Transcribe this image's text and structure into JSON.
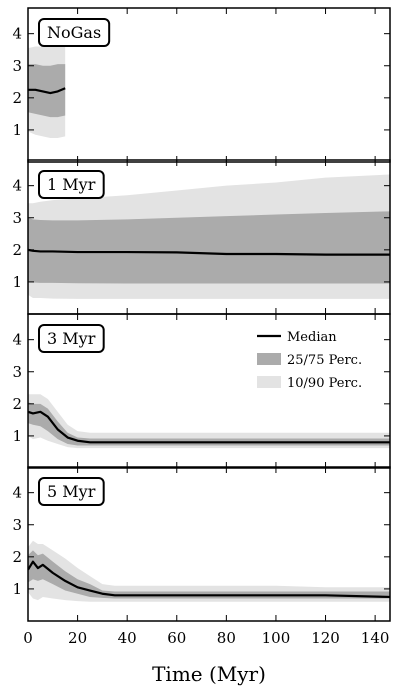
{
  "chart_data": {
    "type": "area",
    "xlabel": "Time (Myr)",
    "xlim": [
      0,
      146
    ],
    "ylim": [
      0,
      4.8
    ],
    "xticks": [
      0,
      20,
      40,
      60,
      80,
      100,
      120,
      140
    ],
    "yticks": [
      1,
      2,
      3,
      4
    ],
    "colors": {
      "p10_90": "#e3e3e3",
      "p25_75": "#ababab",
      "median": "#000000"
    },
    "legend": {
      "placement": "top-right of third panel",
      "entries": [
        "Median",
        "25/75 Perc.",
        "10/90 Perc."
      ]
    },
    "panels": [
      {
        "label": "NoGas",
        "x": [
          0,
          3,
          6,
          9,
          12,
          15
        ],
        "median": [
          2.25,
          2.25,
          2.2,
          2.15,
          2.2,
          2.3
        ],
        "p25": [
          1.55,
          1.5,
          1.45,
          1.4,
          1.4,
          1.45
        ],
        "p75": [
          3.05,
          3.05,
          3.0,
          3.0,
          3.05,
          3.05
        ],
        "p10": [
          0.95,
          0.85,
          0.8,
          0.75,
          0.75,
          0.8
        ],
        "p90": [
          3.55,
          3.6,
          3.6,
          3.6,
          3.65,
          3.65
        ]
      },
      {
        "label": "1 Myr",
        "x": [
          0,
          2,
          5,
          10,
          20,
          40,
          60,
          80,
          100,
          120,
          146
        ],
        "median": [
          2.0,
          1.97,
          1.95,
          1.95,
          1.93,
          1.93,
          1.92,
          1.87,
          1.87,
          1.85,
          1.85
        ],
        "p25": [
          1.0,
          0.98,
          0.97,
          0.97,
          0.96,
          0.95,
          0.95,
          0.95,
          0.95,
          0.95,
          0.95
        ],
        "p75": [
          3.0,
          2.95,
          2.93,
          2.92,
          2.92,
          2.95,
          3.0,
          3.05,
          3.1,
          3.15,
          3.2
        ],
        "p10": [
          0.6,
          0.5,
          0.5,
          0.48,
          0.47,
          0.47,
          0.47,
          0.47,
          0.47,
          0.47,
          0.47
        ],
        "p90": [
          3.45,
          3.45,
          3.5,
          3.55,
          3.6,
          3.7,
          3.85,
          4.0,
          4.1,
          4.25,
          4.35
        ]
      },
      {
        "label": "3 Myr",
        "x": [
          0,
          2,
          5,
          8,
          12,
          16,
          20,
          25,
          30,
          40,
          60,
          80,
          100,
          120,
          146
        ],
        "median": [
          1.75,
          1.7,
          1.75,
          1.6,
          1.2,
          0.95,
          0.85,
          0.8,
          0.8,
          0.8,
          0.8,
          0.8,
          0.8,
          0.8,
          0.8
        ],
        "p25": [
          1.4,
          1.35,
          1.3,
          1.15,
          0.9,
          0.75,
          0.7,
          0.7,
          0.7,
          0.7,
          0.7,
          0.7,
          0.7,
          0.7,
          0.7
        ],
        "p75": [
          2.05,
          2.0,
          2.0,
          1.85,
          1.45,
          1.1,
          0.95,
          0.92,
          0.92,
          0.92,
          0.92,
          0.92,
          0.92,
          0.92,
          0.92
        ],
        "p10": [
          1.0,
          0.9,
          0.95,
          0.85,
          0.75,
          0.65,
          0.62,
          0.62,
          0.62,
          0.62,
          0.62,
          0.62,
          0.62,
          0.62,
          0.62
        ],
        "p90": [
          2.3,
          2.3,
          2.3,
          2.15,
          1.75,
          1.35,
          1.15,
          1.1,
          1.1,
          1.1,
          1.1,
          1.1,
          1.1,
          1.1,
          1.1
        ]
      },
      {
        "label": "5 Myr",
        "x": [
          0,
          2,
          4,
          6,
          10,
          15,
          20,
          25,
          30,
          35,
          40,
          60,
          80,
          100,
          120,
          146
        ],
        "median": [
          1.6,
          1.85,
          1.65,
          1.75,
          1.5,
          1.25,
          1.05,
          0.95,
          0.85,
          0.8,
          0.8,
          0.8,
          0.8,
          0.8,
          0.8,
          0.75
        ],
        "p25": [
          1.2,
          1.3,
          1.25,
          1.3,
          1.15,
          0.95,
          0.85,
          0.75,
          0.72,
          0.7,
          0.7,
          0.7,
          0.7,
          0.7,
          0.7,
          0.7
        ],
        "p75": [
          2.05,
          2.2,
          2.05,
          2.1,
          1.85,
          1.55,
          1.3,
          1.15,
          0.95,
          0.92,
          0.92,
          0.92,
          0.92,
          0.92,
          0.92,
          0.92
        ],
        "p10": [
          0.9,
          0.7,
          0.65,
          0.75,
          0.7,
          0.65,
          0.62,
          0.6,
          0.6,
          0.6,
          0.6,
          0.6,
          0.6,
          0.6,
          0.6,
          0.6
        ],
        "p90": [
          2.3,
          2.5,
          2.4,
          2.4,
          2.2,
          1.95,
          1.65,
          1.4,
          1.15,
          1.1,
          1.1,
          1.1,
          1.1,
          1.1,
          1.05,
          1.05
        ]
      }
    ]
  }
}
